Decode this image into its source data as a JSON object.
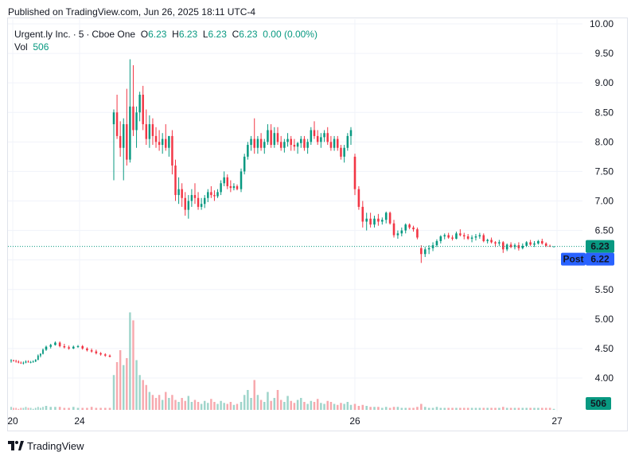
{
  "header": {
    "published": "Published on TradingView.com, Jun 26, 2025 18:11 UTC-4"
  },
  "legend": {
    "symbol": "Urgent.ly Inc.",
    "interval": "5",
    "exchange": "Cboe One",
    "o_label": "O",
    "o_value": "6.23",
    "h_label": "H",
    "h_value": "6.23",
    "l_label": "L",
    "l_value": "6.23",
    "c_label": "C",
    "c_value": "6.23",
    "change": "0.00 (0.00%)",
    "vol_label": "Vol",
    "vol_value": "506"
  },
  "footer": {
    "brand": "TradingView"
  },
  "colors": {
    "up": "#089981",
    "down": "#f23645",
    "up_vol": "#9fd5cb",
    "down_vol": "#f7a9ae",
    "post_badge": "#2962ff",
    "last_line": "#089981"
  },
  "chart_data": {
    "type": "candlestick",
    "symbol": "Urgent.ly Inc.",
    "interval": "5",
    "exchange": "Cboe One",
    "x_ticks": [
      "20",
      "24",
      "26",
      "27"
    ],
    "y_ticks": [
      "10.00",
      "9.50",
      "9.00",
      "8.50",
      "8.00",
      "7.50",
      "7.00",
      "6.50",
      "6.00",
      "5.50",
      "5.00",
      "4.50",
      "4.00"
    ],
    "ylim": [
      3.6,
      10.0
    ],
    "grid": true,
    "last_price": 6.23,
    "last_price_label": "6.23",
    "post_label": "Post",
    "post_price": 6.22,
    "post_price_label": "6.22",
    "volume_label": "506",
    "segments": [
      {
        "session": "Jun 20",
        "candles": [
          [
            4.3,
            4.32,
            4.26,
            4.3
          ],
          [
            4.3,
            4.31,
            4.28,
            4.29
          ],
          [
            4.29,
            4.31,
            4.26,
            4.28
          ],
          [
            4.28,
            4.3,
            4.25,
            4.26
          ],
          [
            4.26,
            4.28,
            4.24,
            4.25
          ],
          [
            4.25,
            4.28,
            4.23,
            4.26
          ],
          [
            4.26,
            4.3,
            4.25,
            4.28
          ],
          [
            4.28,
            4.3,
            4.26,
            4.27
          ],
          [
            4.27,
            4.29,
            4.25,
            4.27
          ],
          [
            4.27,
            4.3,
            4.26,
            4.28
          ],
          [
            4.28,
            4.32,
            4.27,
            4.31
          ],
          [
            4.31,
            4.4,
            4.3,
            4.38
          ],
          [
            4.38,
            4.42,
            4.35,
            4.41
          ],
          [
            4.41,
            4.5,
            4.4,
            4.48
          ]
        ]
      },
      {
        "session": "Jun 23",
        "candles": [
          [
            4.48,
            4.55,
            4.46,
            4.53
          ],
          [
            4.53,
            4.58,
            4.5,
            4.56
          ],
          [
            4.56,
            4.62,
            4.55,
            4.6
          ],
          [
            4.6,
            4.62,
            4.52,
            4.54
          ],
          [
            4.54,
            4.58,
            4.5,
            4.52
          ],
          [
            4.52,
            4.55,
            4.48,
            4.5
          ],
          [
            4.5,
            4.55,
            4.49,
            4.53
          ],
          [
            4.53,
            4.56,
            4.51,
            4.54
          ],
          [
            4.54,
            4.56,
            4.48,
            4.5
          ],
          [
            4.5,
            4.52,
            4.45,
            4.47
          ],
          [
            4.47,
            4.5,
            4.43,
            4.45
          ],
          [
            4.45,
            4.48,
            4.4,
            4.42
          ],
          [
            4.42,
            4.44,
            4.38,
            4.4
          ],
          [
            4.4,
            4.42,
            4.36,
            4.38
          ],
          [
            4.38,
            4.4,
            4.35,
            4.36
          ]
        ]
      },
      {
        "session": "Jun 24",
        "candles": [
          [
            8.3,
            8.55,
            7.35,
            8.5
          ],
          [
            8.5,
            8.8,
            8.05,
            8.1
          ],
          [
            8.1,
            8.35,
            7.75,
            7.9
          ],
          [
            7.9,
            8.4,
            7.35,
            8.3
          ],
          [
            8.3,
            8.9,
            7.6,
            7.7
          ],
          [
            7.7,
            9.4,
            7.65,
            8.6
          ],
          [
            8.6,
            9.3,
            8.1,
            8.2
          ],
          [
            8.2,
            8.6,
            7.9,
            8.5
          ],
          [
            8.5,
            8.85,
            8.35,
            8.8
          ],
          [
            8.8,
            8.95,
            8.2,
            8.3
          ],
          [
            8.3,
            8.55,
            7.95,
            8.05
          ],
          [
            8.05,
            8.45,
            7.9,
            8.3
          ],
          [
            8.3,
            8.4,
            7.95,
            8.1
          ],
          [
            8.1,
            8.25,
            7.9,
            8.0
          ],
          [
            8.0,
            8.2,
            7.85,
            7.95
          ],
          [
            7.95,
            8.15,
            7.8,
            8.05
          ],
          [
            8.05,
            8.3,
            7.85,
            7.9
          ],
          [
            7.9,
            8.1,
            7.75,
            8.1
          ],
          [
            8.1,
            8.2,
            7.45,
            7.6
          ],
          [
            7.6,
            7.7,
            7.0,
            7.1
          ],
          [
            7.1,
            7.4,
            6.95,
            7.2
          ],
          [
            7.2,
            7.3,
            6.9,
            7.05
          ],
          [
            7.05,
            7.15,
            6.75,
            6.85
          ],
          [
            6.85,
            7.1,
            6.7,
            7.0
          ],
          [
            7.0,
            7.2,
            6.9,
            7.1
          ],
          [
            7.1,
            7.3,
            6.95,
            7.05
          ],
          [
            7.05,
            7.15,
            6.85,
            6.9
          ],
          [
            6.9,
            7.05,
            6.85,
            6.95
          ],
          [
            6.95,
            7.1,
            6.88,
            7.05
          ],
          [
            7.05,
            7.2,
            6.98,
            7.15
          ],
          [
            7.15,
            7.25,
            7.05,
            7.1
          ],
          [
            7.1,
            7.18,
            7.0,
            7.08
          ],
          [
            7.08,
            7.2,
            7.05,
            7.15
          ],
          [
            7.15,
            7.35,
            7.1,
            7.3
          ],
          [
            7.3,
            7.5,
            7.25,
            7.4
          ],
          [
            7.4,
            7.45,
            7.2,
            7.25
          ],
          [
            7.25,
            7.35,
            7.15,
            7.22
          ],
          [
            7.22,
            7.3,
            7.18,
            7.25
          ],
          [
            7.25,
            7.28,
            7.18,
            7.2
          ]
        ]
      },
      {
        "session": "Jun 25",
        "candles": [
          [
            7.2,
            7.55,
            7.15,
            7.5
          ],
          [
            7.5,
            7.8,
            7.45,
            7.75
          ],
          [
            7.75,
            8.0,
            7.7,
            7.95
          ],
          [
            7.95,
            8.1,
            7.85,
            8.05
          ],
          [
            8.05,
            8.4,
            7.8,
            7.9
          ],
          [
            7.9,
            8.1,
            7.8,
            8.05
          ],
          [
            8.05,
            8.15,
            7.85,
            7.9
          ],
          [
            7.9,
            8.05,
            7.8,
            8.0
          ],
          [
            8.0,
            8.3,
            7.95,
            8.2
          ],
          [
            8.2,
            8.3,
            7.9,
            7.95
          ],
          [
            7.95,
            8.25,
            7.9,
            8.15
          ],
          [
            8.15,
            8.25,
            7.95,
            8.0
          ],
          [
            8.0,
            8.1,
            7.85,
            7.9
          ],
          [
            7.9,
            8.05,
            7.82,
            8.0
          ],
          [
            8.0,
            8.15,
            7.92,
            8.05
          ],
          [
            8.05,
            8.1,
            7.85,
            7.95
          ],
          [
            7.95,
            8.05,
            7.85,
            7.92
          ],
          [
            7.92,
            8.0,
            7.8,
            7.98
          ],
          [
            7.98,
            8.1,
            7.9,
            8.05
          ],
          [
            8.05,
            8.1,
            7.85,
            7.9
          ],
          [
            7.9,
            8.05,
            7.8,
            8.0
          ],
          [
            8.0,
            8.25,
            7.95,
            8.2
          ],
          [
            8.2,
            8.35,
            8.05,
            8.1
          ],
          [
            8.1,
            8.2,
            7.95,
            8.0
          ],
          [
            8.0,
            8.15,
            7.9,
            8.08
          ],
          [
            8.08,
            8.2,
            8.0,
            8.15
          ],
          [
            8.15,
            8.25,
            7.95,
            8.0
          ],
          [
            8.0,
            8.1,
            7.85,
            7.9
          ],
          [
            7.9,
            8.1,
            7.85,
            8.05
          ],
          [
            8.05,
            8.1,
            7.85,
            7.9
          ],
          [
            7.9,
            7.95,
            7.7,
            7.75
          ],
          [
            7.75,
            7.95,
            7.65,
            7.9
          ],
          [
            7.9,
            8.15,
            7.85,
            8.1
          ],
          [
            8.1,
            8.25,
            7.95,
            8.2
          ]
        ]
      },
      {
        "session": "Jun 26",
        "candles": [
          [
            7.75,
            7.8,
            7.1,
            7.2
          ],
          [
            7.2,
            7.25,
            6.85,
            6.9
          ],
          [
            6.9,
            7.0,
            6.55,
            6.65
          ],
          [
            6.65,
            6.8,
            6.5,
            6.7
          ],
          [
            6.7,
            6.8,
            6.55,
            6.6
          ],
          [
            6.6,
            6.75,
            6.55,
            6.7
          ],
          [
            6.7,
            6.78,
            6.58,
            6.65
          ],
          [
            6.65,
            6.72,
            6.6,
            6.68
          ],
          [
            6.68,
            6.82,
            6.62,
            6.8
          ],
          [
            6.8,
            6.82,
            6.6,
            6.62
          ],
          [
            6.62,
            6.68,
            6.38,
            6.42
          ],
          [
            6.42,
            6.5,
            6.36,
            6.45
          ],
          [
            6.45,
            6.55,
            6.4,
            6.5
          ],
          [
            6.5,
            6.62,
            6.45,
            6.6
          ],
          [
            6.6,
            6.62,
            6.52,
            6.55
          ],
          [
            6.55,
            6.58,
            6.48,
            6.52
          ],
          [
            6.52,
            6.55,
            6.35,
            6.38
          ],
          [
            6.2,
            6.25,
            5.95,
            6.1
          ],
          [
            6.1,
            6.22,
            6.05,
            6.18
          ],
          [
            6.18,
            6.25,
            6.1,
            6.2
          ],
          [
            6.2,
            6.3,
            6.15,
            6.25
          ],
          [
            6.25,
            6.35,
            6.22,
            6.32
          ],
          [
            6.32,
            6.42,
            6.28,
            6.4
          ],
          [
            6.4,
            6.45,
            6.35,
            6.42
          ],
          [
            6.42,
            6.46,
            6.36,
            6.38
          ],
          [
            6.38,
            6.42,
            6.33,
            6.36
          ],
          [
            6.36,
            6.48,
            6.35,
            6.45
          ],
          [
            6.45,
            6.52,
            6.4,
            6.42
          ],
          [
            6.42,
            6.46,
            6.35,
            6.4
          ],
          [
            6.4,
            6.44,
            6.34,
            6.36
          ],
          [
            6.36,
            6.42,
            6.3,
            6.38
          ],
          [
            6.38,
            6.44,
            6.33,
            6.4
          ],
          [
            6.4,
            6.46,
            6.36,
            6.42
          ],
          [
            6.42,
            6.45,
            6.3,
            6.32
          ],
          [
            6.32,
            6.36,
            6.28,
            6.34
          ],
          [
            6.34,
            6.38,
            6.28,
            6.3
          ],
          [
            6.3,
            6.32,
            6.22,
            6.28
          ],
          [
            6.28,
            6.34,
            6.24,
            6.3
          ],
          [
            6.3,
            6.32,
            6.12,
            6.18
          ],
          [
            6.18,
            6.28,
            6.15,
            6.26
          ],
          [
            6.26,
            6.3,
            6.2,
            6.22
          ],
          [
            6.22,
            6.28,
            6.18,
            6.25
          ],
          [
            6.25,
            6.3,
            6.16,
            6.2
          ],
          [
            6.2,
            6.28,
            6.18,
            6.24
          ],
          [
            6.24,
            6.32,
            6.22,
            6.3
          ],
          [
            6.3,
            6.34,
            6.24,
            6.26
          ],
          [
            6.26,
            6.32,
            6.22,
            6.28
          ],
          [
            6.28,
            6.34,
            6.26,
            6.32
          ],
          [
            6.32,
            6.36,
            6.26,
            6.28
          ],
          [
            6.28,
            6.3,
            6.22,
            6.24
          ],
          [
            6.24,
            6.26,
            6.22,
            6.23
          ],
          [
            6.23,
            6.23,
            6.23,
            6.23
          ]
        ]
      }
    ],
    "volumes": [
      [
        0.3,
        0.2,
        0.2,
        0.1,
        0.2,
        0.2,
        0.3,
        0.2,
        0.2,
        0.1,
        0.2,
        0.3,
        0.2,
        0.3
      ],
      [
        0.4,
        0.3,
        0.3,
        0.3,
        0.2,
        0.2,
        0.3,
        0.2,
        0.2,
        0.2,
        0.3,
        0.2,
        0.2,
        0.2,
        0.2
      ],
      [
        3.5,
        4.8,
        6.0,
        4.5,
        5.2,
        9.8,
        9.0,
        5.0,
        3.5,
        3.0,
        2.5,
        1.8,
        1.5,
        1.2,
        1.5,
        1.0,
        1.8,
        1.2,
        1.5,
        1.0,
        0.8,
        1.2,
        0.9,
        1.4,
        0.8,
        1.0,
        0.8,
        0.6,
        0.9,
        0.7,
        1.1,
        0.8,
        0.6,
        0.9,
        0.7,
        0.6,
        0.8,
        0.5,
        0.6
      ],
      [
        0.8,
        1.5,
        2.0,
        1.2,
        3.0,
        1.5,
        1.0,
        0.8,
        1.8,
        0.9,
        1.2,
        2.0,
        1.0,
        0.8,
        1.4,
        0.9,
        0.7,
        1.0,
        1.2,
        0.8,
        0.6,
        0.9,
        0.8,
        1.1,
        0.7,
        0.6,
        0.9,
        0.8,
        0.6,
        0.5,
        0.7,
        0.6,
        0.8,
        0.5
      ],
      [
        0.6,
        0.4,
        0.5,
        0.4,
        0.3,
        0.3,
        0.3,
        0.2,
        0.3,
        0.2,
        0.3,
        0.3,
        0.2,
        0.2,
        0.2,
        0.2,
        0.3,
        0.6,
        0.3,
        0.2,
        0.2,
        0.3,
        0.2,
        0.2,
        0.2,
        0.2,
        0.2,
        0.2,
        0.2,
        0.2,
        0.2,
        0.2,
        0.2,
        0.2,
        0.2,
        0.2,
        0.2,
        0.2,
        0.3,
        0.2,
        0.2,
        0.2,
        0.2,
        0.2,
        0.2,
        0.2,
        0.2,
        0.2,
        0.2,
        0.2,
        0.2,
        0.1
      ]
    ]
  }
}
